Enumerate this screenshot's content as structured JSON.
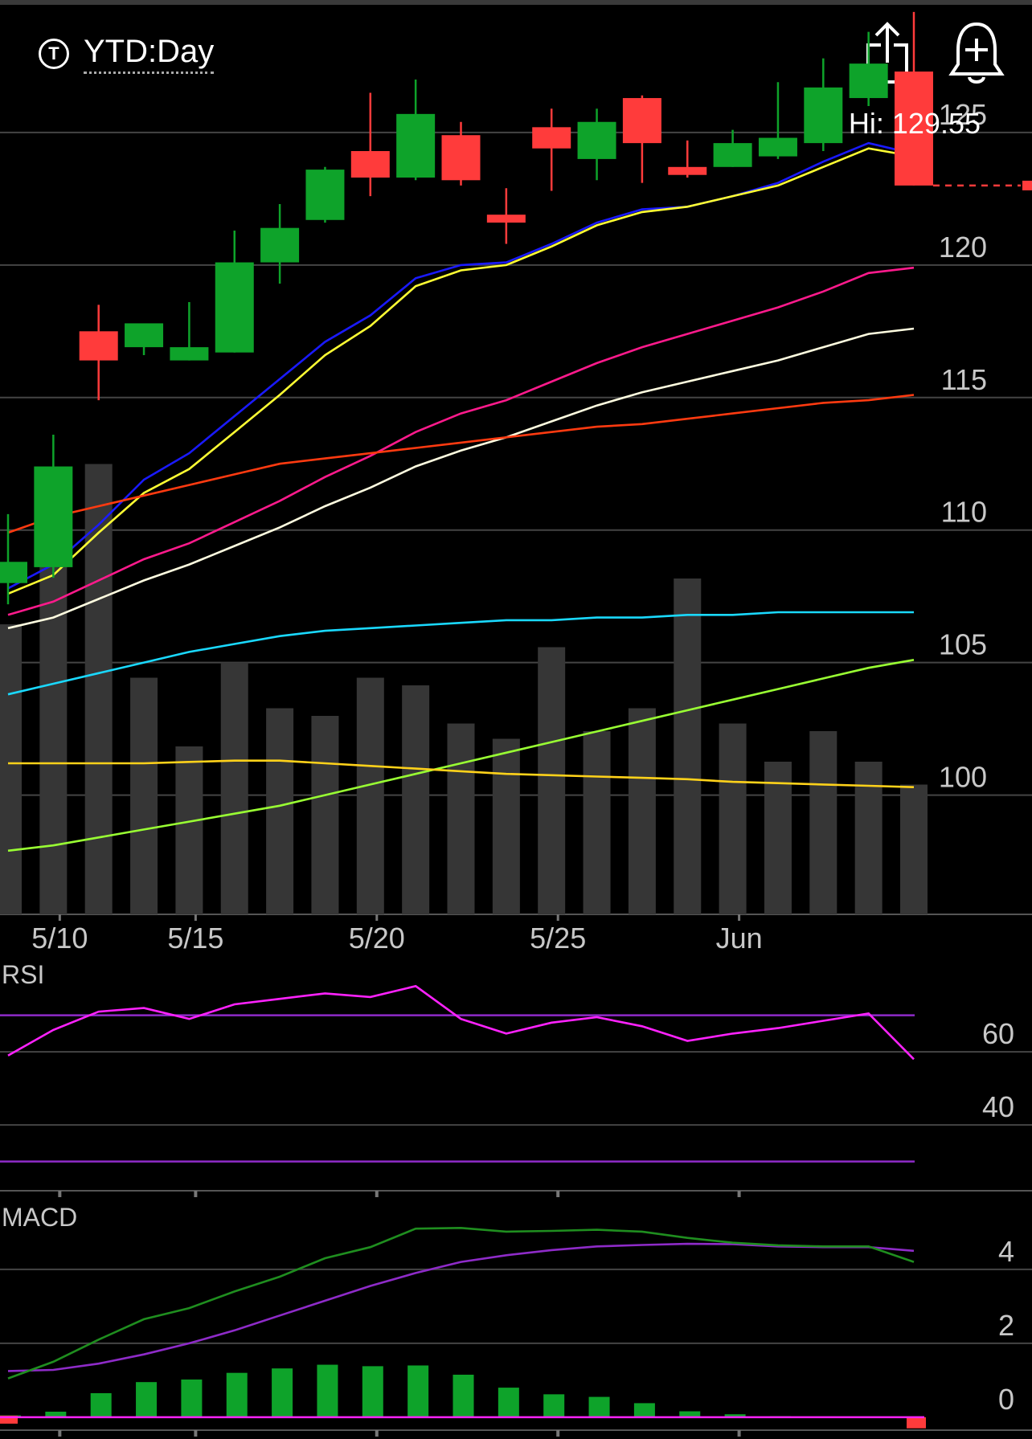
{
  "header": {
    "timeframe_icon": "T",
    "timeframe_label": "YTD:Day",
    "share_icon": "share-icon",
    "alert_icon": "add-alert-bell-icon"
  },
  "chart_data": [
    {
      "type": "candlestick",
      "hi_label": "Hi: 129.55",
      "ylim": [
        95.5,
        130
      ],
      "y_ticks": [
        125,
        120,
        115,
        110,
        105,
        100
      ],
      "x_tick_labels": [
        {
          "label": "5/10",
          "index": 1
        },
        {
          "label": "5/15",
          "index": 4
        },
        {
          "label": "5/20",
          "index": 8
        },
        {
          "label": "5/25",
          "index": 12
        },
        {
          "label": "Jun",
          "index": 16
        }
      ],
      "last_price": 123.0,
      "colors": {
        "up": "#0ea32a",
        "down": "#ff3b3b",
        "volume": "#363636",
        "grid": "#444444"
      },
      "candles": [
        {
          "open": 108.0,
          "high": 110.6,
          "low": 107.2,
          "close": 108.8
        },
        {
          "open": 108.6,
          "high": 113.6,
          "low": 108.2,
          "close": 112.4
        },
        {
          "open": 117.5,
          "high": 118.5,
          "low": 114.9,
          "close": 116.4
        },
        {
          "open": 116.9,
          "high": 117.7,
          "low": 116.6,
          "close": 117.8
        },
        {
          "open": 116.4,
          "high": 118.6,
          "low": 116.4,
          "close": 116.9
        },
        {
          "open": 116.7,
          "high": 121.3,
          "low": 116.7,
          "close": 120.1
        },
        {
          "open": 120.1,
          "high": 122.3,
          "low": 119.3,
          "close": 121.4
        },
        {
          "open": 121.7,
          "high": 123.7,
          "low": 121.6,
          "close": 123.6
        },
        {
          "open": 124.3,
          "high": 126.5,
          "low": 122.6,
          "close": 123.3
        },
        {
          "open": 123.3,
          "high": 127.0,
          "low": 123.2,
          "close": 125.7
        },
        {
          "open": 124.9,
          "high": 125.4,
          "low": 123.0,
          "close": 123.2
        },
        {
          "open": 121.9,
          "high": 122.9,
          "low": 120.8,
          "close": 121.6
        },
        {
          "open": 125.2,
          "high": 125.9,
          "low": 122.8,
          "close": 124.4
        },
        {
          "open": 124.0,
          "high": 125.9,
          "low": 123.2,
          "close": 125.4
        },
        {
          "open": 126.3,
          "high": 126.4,
          "low": 123.1,
          "close": 124.6
        },
        {
          "open": 123.7,
          "high": 124.7,
          "low": 123.3,
          "close": 123.4
        },
        {
          "open": 123.7,
          "high": 125.1,
          "low": 123.7,
          "close": 124.6
        },
        {
          "open": 124.1,
          "high": 126.9,
          "low": 124.0,
          "close": 124.8
        },
        {
          "open": 124.6,
          "high": 127.8,
          "low": 124.3,
          "close": 126.7
        },
        {
          "open": 126.3,
          "high": 128.8,
          "low": 126.0,
          "close": 127.6
        },
        {
          "open": 127.3,
          "high": 129.55,
          "low": 123.0,
          "close": 123.0
        }
      ],
      "volume": [
        38,
        58,
        59,
        31,
        22,
        33,
        27,
        26,
        31,
        30,
        25,
        23,
        35,
        24,
        27,
        44,
        25,
        20,
        24,
        20,
        17
      ],
      "overlays": [
        {
          "color": "#1a1aff",
          "values": [
            107.8,
            108.7,
            110.2,
            111.9,
            112.9,
            114.3,
            115.7,
            117.1,
            118.1,
            119.5,
            120.0,
            120.1,
            120.8,
            121.6,
            122.1,
            122.2,
            122.6,
            123.1,
            123.9,
            124.6,
            124.2
          ]
        },
        {
          "color": "#ffff33",
          "values": [
            107.6,
            108.3,
            109.9,
            111.4,
            112.3,
            113.7,
            115.1,
            116.6,
            117.7,
            119.2,
            119.8,
            120.0,
            120.7,
            121.5,
            122.0,
            122.2,
            122.6,
            123.0,
            123.7,
            124.4,
            124.1
          ]
        },
        {
          "color": "#ff1a8c",
          "values": [
            106.8,
            107.3,
            108.1,
            108.9,
            109.5,
            110.3,
            111.1,
            112.0,
            112.8,
            113.7,
            114.4,
            114.9,
            115.6,
            116.3,
            116.9,
            117.4,
            117.9,
            118.4,
            119.0,
            119.7,
            119.9
          ]
        },
        {
          "color": "#fffde0",
          "values": [
            106.3,
            106.7,
            107.4,
            108.1,
            108.7,
            109.4,
            110.1,
            110.9,
            111.6,
            112.4,
            113.0,
            113.5,
            114.1,
            114.7,
            115.2,
            115.6,
            116.0,
            116.4,
            116.9,
            117.4,
            117.6
          ]
        },
        {
          "color": "#ff3a10",
          "values": [
            109.9,
            110.5,
            110.9,
            111.3,
            111.7,
            112.1,
            112.5,
            112.7,
            112.9,
            113.1,
            113.3,
            113.5,
            113.7,
            113.9,
            114.0,
            114.2,
            114.4,
            114.6,
            114.8,
            114.9,
            115.1
          ]
        },
        {
          "color": "#1ad9ff",
          "values": [
            103.8,
            104.2,
            104.6,
            105.0,
            105.4,
            105.7,
            106.0,
            106.2,
            106.3,
            106.4,
            106.5,
            106.6,
            106.6,
            106.7,
            106.7,
            106.8,
            106.8,
            106.9,
            106.9,
            106.9,
            106.9
          ]
        },
        {
          "color": "#99ff33",
          "values": [
            97.9,
            98.1,
            98.4,
            98.7,
            99.0,
            99.3,
            99.6,
            100.0,
            100.4,
            100.8,
            101.2,
            101.6,
            102.0,
            102.4,
            102.8,
            103.2,
            103.6,
            104.0,
            104.4,
            104.8,
            105.1
          ]
        },
        {
          "color": "#ffd21a",
          "values": [
            101.2,
            101.2,
            101.2,
            101.2,
            101.25,
            101.3,
            101.3,
            101.2,
            101.1,
            101.0,
            100.9,
            100.8,
            100.75,
            100.7,
            100.65,
            100.6,
            100.5,
            100.45,
            100.4,
            100.35,
            100.3
          ]
        }
      ]
    },
    {
      "type": "line",
      "title": "RSI",
      "ylim": [
        22,
        84
      ],
      "y_ticks": [
        60,
        40
      ],
      "reference_lines": {
        "values": [
          70,
          30
        ],
        "color": "#8e2bc8"
      },
      "series": [
        {
          "color": "#ff22ff",
          "values": [
            59,
            66,
            71,
            72,
            69,
            73,
            74.5,
            76,
            75,
            78,
            69,
            65,
            68,
            69.5,
            67,
            63,
            65,
            66.5,
            68.5,
            70.5,
            58
          ]
        }
      ]
    },
    {
      "type": "macd",
      "title": "MACD",
      "ylim": [
        -0.35,
        5.3
      ],
      "y_ticks": [
        4,
        2,
        0
      ],
      "histogram": {
        "up_color": "#0ea32a",
        "down_color": "#ff3b3b",
        "values": [
          0.05,
          0.15,
          0.65,
          0.95,
          1.02,
          1.2,
          1.32,
          1.42,
          1.38,
          1.4,
          1.15,
          0.8,
          0.62,
          0.55,
          0.38,
          0.16,
          0.08,
          0.03,
          0.02,
          0.02,
          -0.3
        ]
      },
      "macd_line": {
        "color": "#1f8e1f",
        "values": [
          1.05,
          1.5,
          2.1,
          2.65,
          2.95,
          3.4,
          3.8,
          4.3,
          4.6,
          5.1,
          5.12,
          5.02,
          5.04,
          5.07,
          5.02,
          4.85,
          4.72,
          4.65,
          4.62,
          4.62,
          4.2
        ]
      },
      "signal_line": {
        "color": "#8e2bc8",
        "values": [
          1.25,
          1.28,
          1.45,
          1.7,
          2.0,
          2.35,
          2.75,
          3.15,
          3.55,
          3.9,
          4.2,
          4.38,
          4.52,
          4.62,
          4.66,
          4.69,
          4.68,
          4.62,
          4.6,
          4.6,
          4.5
        ]
      },
      "zero_line_color": "#ff22ff"
    }
  ]
}
